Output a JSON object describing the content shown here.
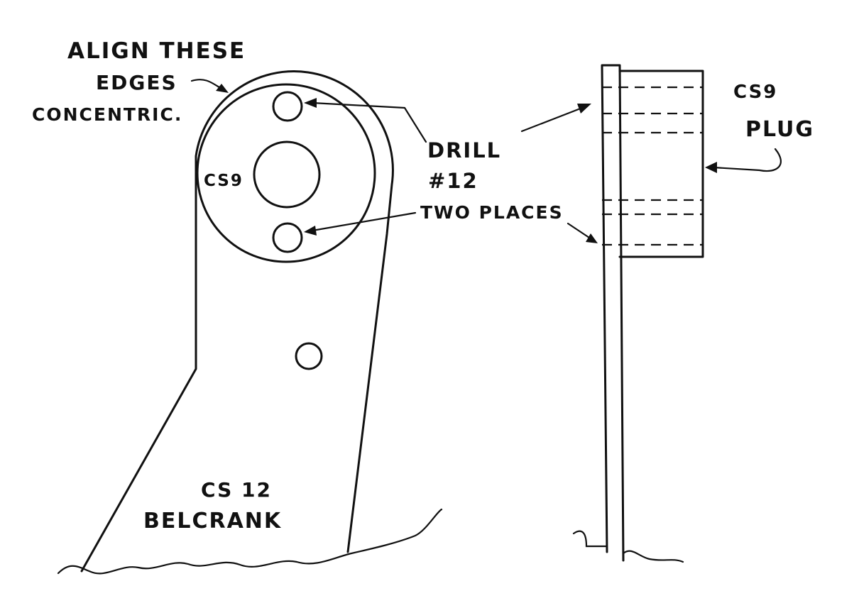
{
  "labels": {
    "align_line1": "ALIGN THESE",
    "align_line2": "EDGES",
    "align_line3": "CONCENTRIC.",
    "plate_cs9": "CS9",
    "drill_line1": "DRILL",
    "drill_line2": "#12",
    "drill_line3": "TWO PLACES",
    "plug_line1": "CS9",
    "plug_line2": "PLUG",
    "belcrank_line1": "CS 12",
    "belcrank_line2": "BELCRANK"
  },
  "colors": {
    "ink": "#111111",
    "paper": "#ffffff"
  }
}
